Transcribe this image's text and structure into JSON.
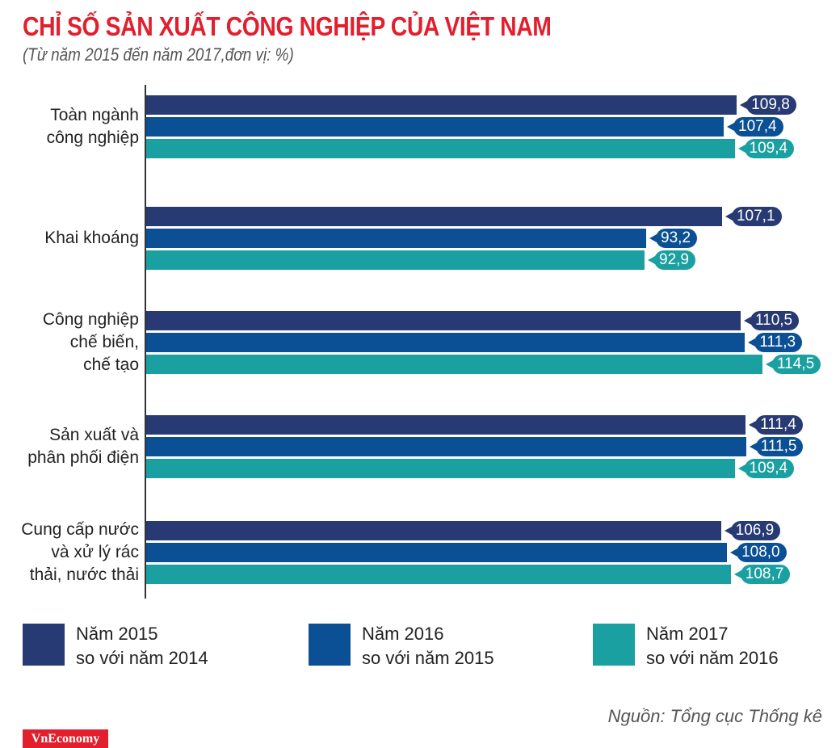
{
  "chart_data": {
    "type": "bar",
    "orientation": "horizontal",
    "title": "CHỈ SỐ SẢN XUẤT CÔNG NGHIỆP CỦA VIỆT NAM",
    "subtitle": "(Từ năm 2015 đến năm 2017,đơn vị: %)",
    "categories": [
      "Toàn ngành\ncông nghiệp",
      "Khai khoáng",
      "Công nghiệp\nchế biến,\nchế tạo",
      "Sản xuất và\nphân phối điện",
      "Cung cấp nước\nvà xử lý rác\nthải, nước thải"
    ],
    "series": [
      {
        "name": "Năm 2015\nso với năm 2014",
        "color": "#283a73",
        "values": [
          109.8,
          107.1,
          110.5,
          111.4,
          106.9
        ],
        "labels": [
          "109,8",
          "107,1",
          "110,5",
          "111,4",
          "106,9"
        ]
      },
      {
        "name": "Năm 2016\nso với năm 2015",
        "color": "#0b4f95",
        "values": [
          107.4,
          93.2,
          111.3,
          111.5,
          108.0
        ],
        "labels": [
          "107,4",
          "93,2",
          "111,3",
          "111,5",
          "108,0"
        ]
      },
      {
        "name": "Năm 2017\nso với năm 2016",
        "color": "#1aa0a0",
        "values": [
          109.4,
          92.9,
          114.5,
          109.4,
          108.7
        ],
        "labels": [
          "109,4",
          "92,9",
          "114,5",
          "109,4",
          "108,7"
        ]
      }
    ],
    "legend": "bottom",
    "grid": false
  },
  "source": "Nguồn: Tổng cục Thống kê",
  "logo": "VnEconomy"
}
